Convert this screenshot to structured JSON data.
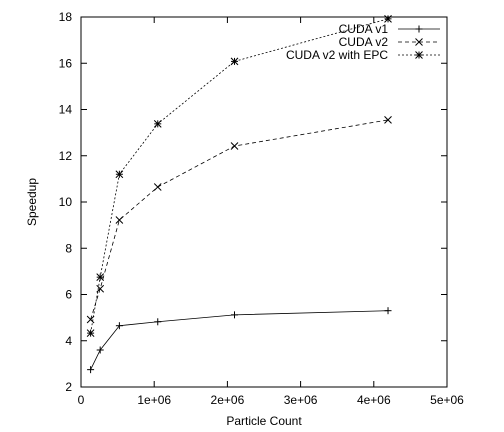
{
  "chart_data": {
    "type": "line",
    "xlabel": "Particle Count",
    "ylabel": "Speedup",
    "xlim": [
      0,
      5000000
    ],
    "ylim": [
      2,
      18
    ],
    "x_ticks": [
      0,
      1000000,
      2000000,
      3000000,
      4000000,
      5000000
    ],
    "x_tick_labels": [
      "0",
      "1e+06",
      "2e+06",
      "3e+06",
      "4e+06",
      "5e+06"
    ],
    "y_ticks": [
      2,
      4,
      6,
      8,
      10,
      12,
      14,
      16,
      18
    ],
    "y_tick_labels": [
      "2",
      "4",
      "6",
      "8",
      "10",
      "12",
      "14",
      "16",
      "18"
    ],
    "grid": false,
    "legend_position": "top-right",
    "series": [
      {
        "name": "CUDA v1",
        "marker": "plus",
        "line_style": "solid",
        "points": [
          [
            131072,
            2.75
          ],
          [
            262144,
            3.6
          ],
          [
            524288,
            4.65
          ],
          [
            1048576,
            4.82
          ],
          [
            2097152,
            5.12
          ],
          [
            4194304,
            5.3
          ]
        ]
      },
      {
        "name": "CUDA v2",
        "marker": "cross",
        "line_style": "dashed",
        "points": [
          [
            131072,
            4.92
          ],
          [
            262144,
            6.25
          ],
          [
            524288,
            9.22
          ],
          [
            1048576,
            10.65
          ],
          [
            2097152,
            12.42
          ],
          [
            4194304,
            13.55
          ]
        ]
      },
      {
        "name": "CUDA v2 with EPC",
        "marker": "star",
        "line_style": "dotted",
        "points": [
          [
            131072,
            4.33
          ],
          [
            262144,
            6.75
          ],
          [
            524288,
            11.2
          ],
          [
            1048576,
            13.38
          ],
          [
            2097152,
            16.08
          ],
          [
            4194304,
            17.92
          ]
        ]
      }
    ]
  }
}
